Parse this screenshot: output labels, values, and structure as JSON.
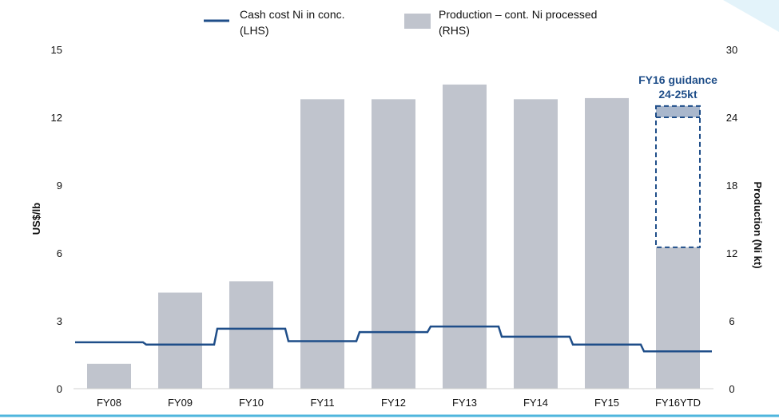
{
  "chart_data": {
    "type": "bar",
    "categories": [
      "FY08",
      "FY09",
      "FY10",
      "FY11",
      "FY12",
      "FY13",
      "FY14",
      "FY15",
      "FY16YTD"
    ],
    "series": [
      {
        "name": "Production – cont. Ni processed (RHS)",
        "legend_lines": [
          "Production – cont. Ni processed",
          "(RHS)"
        ],
        "type": "bar",
        "axis": "right",
        "color": "#C0C4CD",
        "values": [
          2.2,
          8.5,
          9.5,
          25.6,
          25.6,
          26.9,
          25.6,
          25.7,
          12.5
        ]
      },
      {
        "name": "Cash cost Ni in conc. (LHS)",
        "legend_lines": [
          "Cash cost Ni in conc.",
          "(LHS)"
        ],
        "type": "step-line",
        "axis": "left",
        "color": "#1F4E89",
        "values": [
          2.05,
          1.95,
          2.65,
          2.1,
          2.5,
          2.75,
          2.3,
          1.95,
          1.65
        ]
      }
    ],
    "guidance": {
      "category": "FY16YTD",
      "range": [
        24,
        25
      ],
      "label_lines": [
        "FY16 guidance",
        "24-25kt"
      ],
      "color": "#1F4E89"
    },
    "left_axis": {
      "label": "US$/lb",
      "ylim": [
        0,
        15
      ],
      "ticks": [
        0,
        3,
        6,
        9,
        12,
        15
      ]
    },
    "right_axis": {
      "label": "Production (Ni kt)",
      "ylim": [
        0,
        30
      ],
      "ticks": [
        0,
        6,
        12,
        18,
        24,
        30
      ]
    },
    "legend_position": "top-center",
    "grid": false
  }
}
